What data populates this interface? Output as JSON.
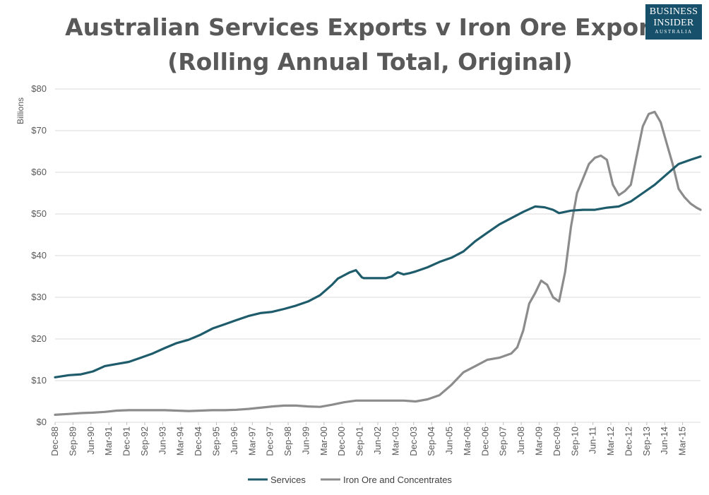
{
  "logo": {
    "line1": "BUSINESS",
    "line2": "INSIDER",
    "line3": "AUSTRALIA"
  },
  "chart_data": {
    "type": "line",
    "title": [
      "Australian Services Exports v Iron Ore Exports",
      "(Rolling Annual Total, Original)"
    ],
    "ylabel": "Billions",
    "ylim": [
      0,
      80
    ],
    "yticks": [
      0,
      10,
      20,
      30,
      40,
      50,
      60,
      70,
      80
    ],
    "ytick_labels": [
      "$0",
      "$10",
      "$20",
      "$30",
      "$40",
      "$50",
      "$60",
      "$70",
      "$80"
    ],
    "xlim": [
      1988.917,
      2015.917
    ],
    "xtick_labels": [
      "Dec-88",
      "Sep-89",
      "Jun-90",
      "Mar-91",
      "Dec-91",
      "Sep-92",
      "Jun-93",
      "Mar-94",
      "Dec-94",
      "Sep-95",
      "Jun-96",
      "Mar-97",
      "Dec-97",
      "Sep-98",
      "Jun-99",
      "Mar-00",
      "Dec-00",
      "Sep-01",
      "Jun-02",
      "Mar-03",
      "Dec-03",
      "Sep-04",
      "Jun-05",
      "Mar-06",
      "Dec-06",
      "Sep-07",
      "Jun-08",
      "Mar-09",
      "Dec-09",
      "Sep-10",
      "Jun-11",
      "Mar-12",
      "Dec-12",
      "Sep-13",
      "Jun-14",
      "Mar-15"
    ],
    "legend": "bottom",
    "series": [
      {
        "name": "Services",
        "color": "#1f5c6b",
        "x": [
          1988.917,
          1989.5,
          1990.0,
          1990.5,
          1991.0,
          1991.5,
          1992.0,
          1992.5,
          1993.0,
          1993.5,
          1994.0,
          1994.5,
          1995.0,
          1995.5,
          1996.0,
          1996.5,
          1997.0,
          1997.5,
          1998.0,
          1998.5,
          1999.0,
          1999.5,
          2000.0,
          2000.5,
          2000.75,
          2000.917,
          2001.25,
          2001.5,
          2001.75,
          2001.833,
          2002.25,
          2002.75,
          2003.0,
          2003.25,
          2003.5,
          2003.75,
          2004.0,
          2004.5,
          2005.0,
          2005.5,
          2006.0,
          2006.5,
          2007.0,
          2007.5,
          2008.0,
          2008.5,
          2009.0,
          2009.4,
          2009.75,
          2010.0,
          2010.5,
          2011.0,
          2011.5,
          2012.0,
          2012.5,
          2013.0,
          2013.5,
          2014.0,
          2014.5,
          2015.0,
          2015.5,
          2015.917
        ],
        "values": [
          10.8,
          11.3,
          11.5,
          12.2,
          13.5,
          14.0,
          14.5,
          15.5,
          16.5,
          17.8,
          19.0,
          19.8,
          21.0,
          22.5,
          23.5,
          24.5,
          25.5,
          26.2,
          26.5,
          27.2,
          28.0,
          29.0,
          30.5,
          33.0,
          34.5,
          35.0,
          36.0,
          36.5,
          34.8,
          34.6,
          34.6,
          34.6,
          35.0,
          36.0,
          35.5,
          35.8,
          36.2,
          37.2,
          38.5,
          39.5,
          41.0,
          43.5,
          45.5,
          47.5,
          49.0,
          50.5,
          51.8,
          51.6,
          51.0,
          50.2,
          50.8,
          51.0,
          51.0,
          51.5,
          51.8,
          53.0,
          55.0,
          57.0,
          59.5,
          62.0,
          63.0,
          63.8
        ]
      },
      {
        "name": "Iron Ore and Concentrates",
        "color": "#8c8c8c",
        "x": [
          1988.917,
          1989.5,
          1990.0,
          1990.5,
          1991.0,
          1991.5,
          1992.0,
          1992.5,
          1993.0,
          1993.5,
          1994.0,
          1994.5,
          1995.0,
          1995.5,
          1996.0,
          1996.5,
          1997.0,
          1997.5,
          1998.0,
          1998.5,
          1999.0,
          1999.5,
          2000.0,
          2000.5,
          2001.0,
          2001.5,
          2002.0,
          2002.5,
          2003.0,
          2003.5,
          2004.0,
          2004.5,
          2005.0,
          2005.5,
          2006.0,
          2006.5,
          2007.0,
          2007.5,
          2008.0,
          2008.25,
          2008.5,
          2008.75,
          2009.0,
          2009.25,
          2009.5,
          2009.75,
          2010.0,
          2010.25,
          2010.5,
          2010.75,
          2011.0,
          2011.25,
          2011.5,
          2011.75,
          2012.0,
          2012.25,
          2012.5,
          2012.75,
          2013.0,
          2013.25,
          2013.5,
          2013.75,
          2014.0,
          2014.25,
          2014.5,
          2014.75,
          2015.0,
          2015.25,
          2015.5,
          2015.75,
          2015.917
        ],
        "values": [
          1.8,
          2.0,
          2.2,
          2.3,
          2.5,
          2.8,
          2.9,
          2.9,
          2.9,
          2.9,
          2.8,
          2.7,
          2.8,
          2.9,
          2.9,
          3.0,
          3.2,
          3.5,
          3.8,
          4.0,
          4.0,
          3.8,
          3.7,
          4.2,
          4.8,
          5.2,
          5.2,
          5.2,
          5.2,
          5.2,
          5.0,
          5.5,
          6.5,
          9.0,
          12.0,
          13.5,
          15.0,
          15.5,
          16.5,
          18.0,
          22.0,
          28.5,
          31.0,
          34.0,
          33.0,
          30.0,
          29.0,
          36.0,
          47.0,
          55.0,
          58.5,
          62.0,
          63.5,
          64.0,
          63.0,
          57.0,
          54.5,
          55.5,
          57.0,
          64.0,
          71.0,
          74.0,
          74.5,
          72.0,
          67.0,
          62.0,
          56.0,
          54.0,
          52.5,
          51.5,
          51.0
        ]
      }
    ]
  }
}
